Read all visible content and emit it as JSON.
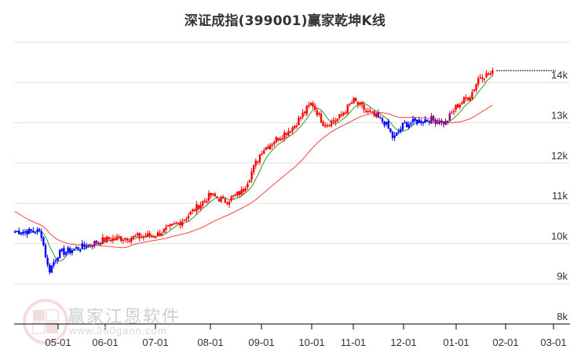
{
  "title": "深证成指(399001)赢家乾坤K线",
  "watermark": {
    "brand": "赢家江恩软件",
    "url": "www.360gann.com",
    "seal": [
      "江",
      "赢",
      "恩",
      "家"
    ]
  },
  "colors": {
    "up": "#ff0000",
    "down": "#0000ff",
    "neutral": "#800080",
    "ma_short": "#008000",
    "ma_long": "#ff0000",
    "grid": "#e0e0e0",
    "axis": "#000000"
  },
  "chart_data": {
    "type": "candlestick",
    "title": "深证成指(399001)赢家乾坤K线",
    "xlabel": "",
    "ylabel": "",
    "ylim": [
      8000,
      15000
    ],
    "y_ticks": [
      "8k",
      "9k",
      "10k",
      "11k",
      "12k",
      "13k",
      "14k"
    ],
    "x_ticks": [
      "05-01",
      "06-01",
      "07-01",
      "08-01",
      "09-01",
      "10-01",
      "11-01",
      "12-01",
      "01-01",
      "02-01",
      "03-01"
    ],
    "grid": true,
    "series": [
      {
        "name": "K线",
        "type": "candlestick"
      },
      {
        "name": "短期均线",
        "color": "#008000"
      },
      {
        "name": "长期均线",
        "color": "#ff0000"
      }
    ],
    "last_close_line": 14250,
    "approx_closes": [
      {
        "date": "04-20",
        "close": 10300
      },
      {
        "date": "04-25",
        "close": 9300
      },
      {
        "date": "05-01",
        "close": 9750
      },
      {
        "date": "05-15",
        "close": 9900
      },
      {
        "date": "06-01",
        "close": 10100
      },
      {
        "date": "06-15",
        "close": 10150
      },
      {
        "date": "07-01",
        "close": 10200
      },
      {
        "date": "07-15",
        "close": 10550
      },
      {
        "date": "08-01",
        "close": 11200
      },
      {
        "date": "08-10",
        "close": 11050
      },
      {
        "date": "08-20",
        "close": 11300
      },
      {
        "date": "09-01",
        "close": 12300
      },
      {
        "date": "09-10",
        "close": 12600
      },
      {
        "date": "09-20",
        "close": 12900
      },
      {
        "date": "10-01",
        "close": 13500
      },
      {
        "date": "10-10",
        "close": 12950
      },
      {
        "date": "10-20",
        "close": 13100
      },
      {
        "date": "11-01",
        "close": 13550
      },
      {
        "date": "11-10",
        "close": 13250
      },
      {
        "date": "11-20",
        "close": 13000
      },
      {
        "date": "11-25",
        "close": 12600
      },
      {
        "date": "12-01",
        "close": 12950
      },
      {
        "date": "12-15",
        "close": 13100
      },
      {
        "date": "12-25",
        "close": 13000
      },
      {
        "date": "01-01",
        "close": 13400
      },
      {
        "date": "01-10",
        "close": 13700
      },
      {
        "date": "01-15",
        "close": 14150
      },
      {
        "date": "01-25",
        "close": 14250
      }
    ]
  }
}
